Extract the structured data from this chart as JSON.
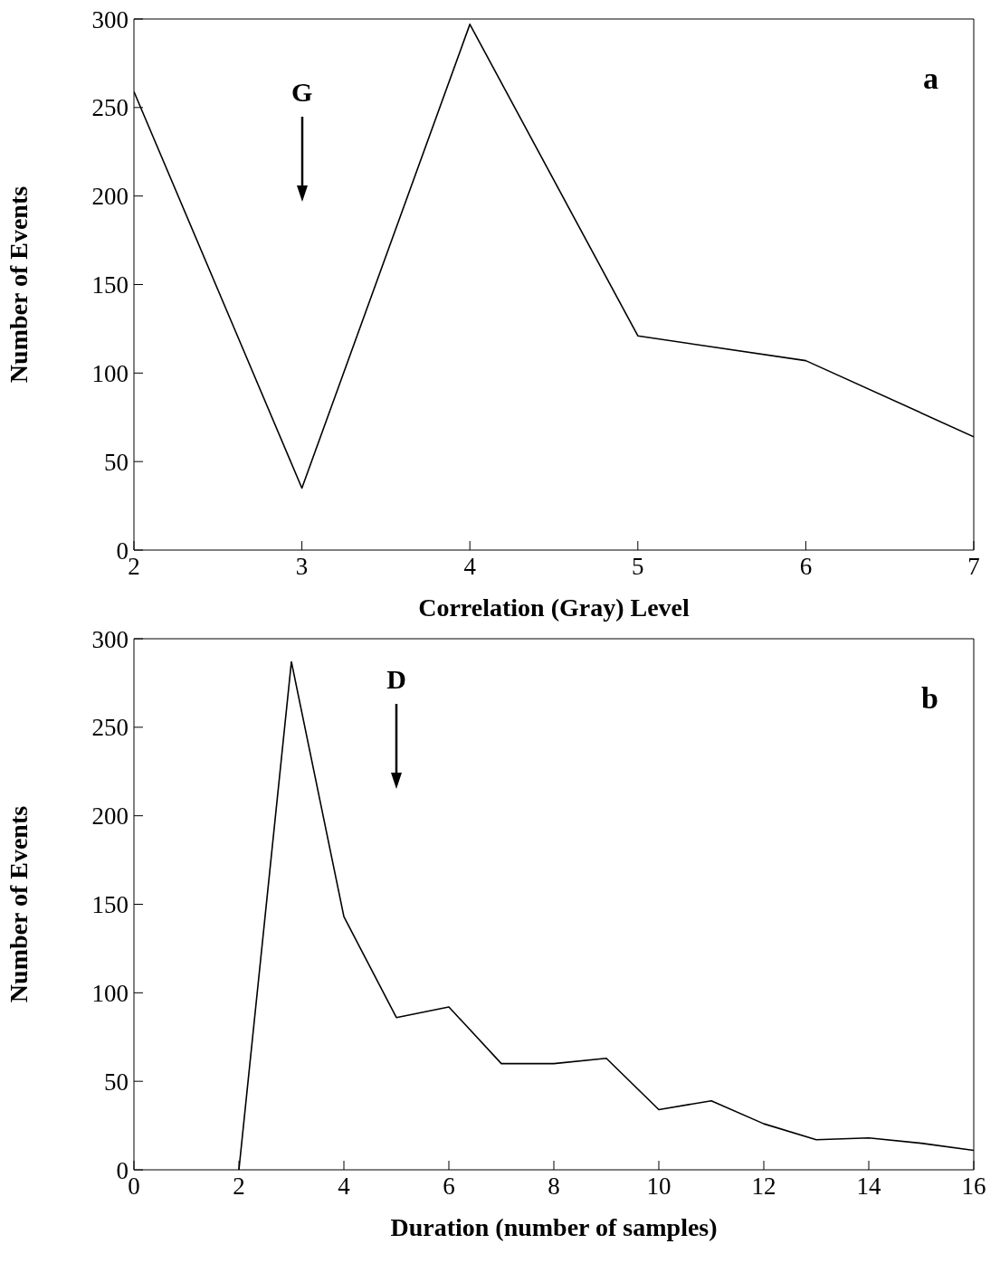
{
  "chart_data": [
    {
      "type": "line",
      "xlabel": "Correlation (Gray) Level",
      "ylabel": "Number of Events",
      "x": [
        2,
        3,
        4,
        5,
        6,
        7
      ],
      "values": [
        259,
        35,
        297,
        121,
        107,
        64
      ],
      "color": "#000000",
      "xlim": [
        2,
        7
      ],
      "xticks": [
        2,
        3,
        4,
        5,
        6,
        7
      ],
      "ylim": [
        0,
        300
      ],
      "yticks": [
        0,
        50,
        100,
        150,
        200,
        250,
        300
      ],
      "marker": "none",
      "line_style": "solid",
      "annotations": [
        "a",
        "G"
      ]
    },
    {
      "type": "line",
      "xlabel": "Duration (number of samples)",
      "ylabel": "Number of Events",
      "x": [
        2,
        3,
        4,
        5,
        6,
        7,
        8,
        9,
        10,
        11,
        12,
        13,
        14,
        15,
        16
      ],
      "values": [
        0,
        287,
        143,
        86,
        92,
        60,
        60,
        63,
        34,
        39,
        26,
        17,
        18,
        15,
        11
      ],
      "color": "#000000",
      "xlim": [
        0,
        16
      ],
      "xticks": [
        0,
        2,
        4,
        6,
        8,
        10,
        12,
        14,
        16
      ],
      "ylim": [
        0,
        300
      ],
      "yticks": [
        0,
        50,
        100,
        150,
        200,
        250,
        300
      ],
      "marker": "none",
      "line_style": "solid",
      "annotations": [
        "b",
        "D"
      ]
    }
  ]
}
